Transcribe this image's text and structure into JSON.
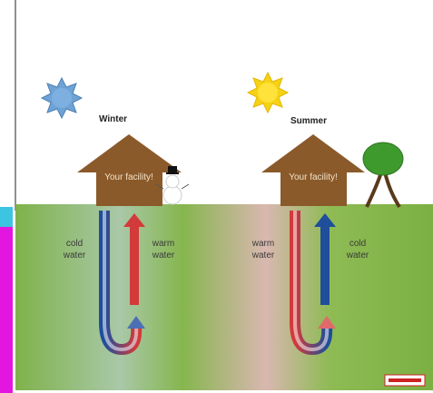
{
  "winter": {
    "season": "Winter",
    "building": "Your facility!",
    "left_label": "cold water",
    "right_label": "warm water"
  },
  "summer": {
    "season": "Summer",
    "building": "Your facility!",
    "left_label": "warm water",
    "right_label": "cold water"
  }
}
